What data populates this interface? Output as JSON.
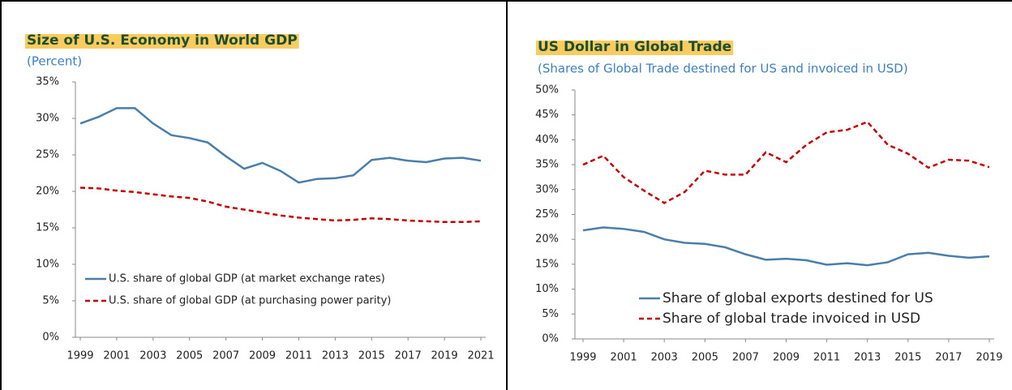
{
  "chart_data": [
    {
      "type": "line",
      "title": "Size of U.S. Economy in World GDP",
      "subtitle": "(Percent)",
      "x": [
        1999,
        2000,
        2001,
        2002,
        2003,
        2004,
        2005,
        2006,
        2007,
        2008,
        2009,
        2010,
        2011,
        2012,
        2013,
        2014,
        2015,
        2016,
        2017,
        2018,
        2019,
        2020,
        2021
      ],
      "xlim": [
        1999,
        2021
      ],
      "xticks": [
        1999,
        2001,
        2003,
        2005,
        2007,
        2009,
        2011,
        2013,
        2015,
        2017,
        2019,
        2021
      ],
      "ylim": [
        0,
        35
      ],
      "yticks": [
        {
          "value": 0,
          "label": "0%"
        },
        {
          "value": 5,
          "label": "5%"
        },
        {
          "value": 10,
          "label": "10%"
        },
        {
          "value": 15,
          "label": "15%"
        },
        {
          "value": 20,
          "label": "20%"
        },
        {
          "value": 25,
          "label": "25%"
        },
        {
          "value": 30,
          "label": "30%"
        },
        {
          "value": 35,
          "label": "35%"
        }
      ],
      "series": [
        {
          "name": "U.S. share of global GDP (at market exchange rates)",
          "color": "#4a7ea8",
          "dashed": false,
          "values": [
            29.3,
            30.2,
            31.4,
            31.4,
            29.3,
            27.7,
            27.3,
            26.7,
            24.8,
            23.1,
            23.9,
            22.8,
            21.2,
            21.7,
            21.8,
            22.2,
            24.3,
            24.6,
            24.2,
            24.0,
            24.5,
            24.6,
            24.2
          ]
        },
        {
          "name": "U.S. share of global GDP (at purchasing power parity)",
          "color": "#c00000",
          "dashed": true,
          "values": [
            20.5,
            20.4,
            20.1,
            19.9,
            19.6,
            19.3,
            19.1,
            18.6,
            17.9,
            17.5,
            17.1,
            16.7,
            16.4,
            16.2,
            16.0,
            16.1,
            16.3,
            16.2,
            16.0,
            15.9,
            15.8,
            15.8,
            15.9
          ]
        }
      ]
    },
    {
      "type": "line",
      "title": "US Dollar in Global Trade",
      "subtitle": "(Shares of Global Trade destined for US and invoiced in USD)",
      "x": [
        1999,
        2000,
        2001,
        2002,
        2003,
        2004,
        2005,
        2006,
        2007,
        2008,
        2009,
        2010,
        2011,
        2012,
        2013,
        2014,
        2015,
        2016,
        2017,
        2018,
        2019
      ],
      "xlim": [
        1999,
        2019
      ],
      "xticks": [
        1999,
        2001,
        2003,
        2005,
        2007,
        2009,
        2011,
        2013,
        2015,
        2017,
        2019
      ],
      "ylim": [
        0,
        50
      ],
      "yticks": [
        {
          "value": 0,
          "label": "0%"
        },
        {
          "value": 5,
          "label": "5%"
        },
        {
          "value": 10,
          "label": "10%"
        },
        {
          "value": 15,
          "label": "15%"
        },
        {
          "value": 20,
          "label": "20%"
        },
        {
          "value": 25,
          "label": "25%"
        },
        {
          "value": 30,
          "label": "30%"
        },
        {
          "value": 35,
          "label": "35%"
        },
        {
          "value": 40,
          "label": "40%"
        },
        {
          "value": 45,
          "label": "45%"
        },
        {
          "value": 50,
          "label": "50%"
        }
      ],
      "series": [
        {
          "name": "Share of global exports destined for US",
          "color": "#4a7ea8",
          "dashed": false,
          "values": [
            21.8,
            22.4,
            22.1,
            21.5,
            20.0,
            19.3,
            19.1,
            18.4,
            17.0,
            15.9,
            16.1,
            15.8,
            14.9,
            15.2,
            14.8,
            15.4,
            17.0,
            17.3,
            16.7,
            16.3,
            16.6
          ]
        },
        {
          "name": "Share of global trade invoiced in USD",
          "color": "#c00000",
          "dashed": true,
          "values": [
            35.0,
            36.8,
            32.5,
            29.8,
            27.3,
            29.5,
            33.8,
            33.0,
            33.0,
            37.5,
            35.5,
            39.0,
            41.5,
            42.0,
            43.6,
            39.0,
            37.2,
            34.4,
            36.0,
            35.8,
            34.5
          ]
        }
      ]
    }
  ]
}
